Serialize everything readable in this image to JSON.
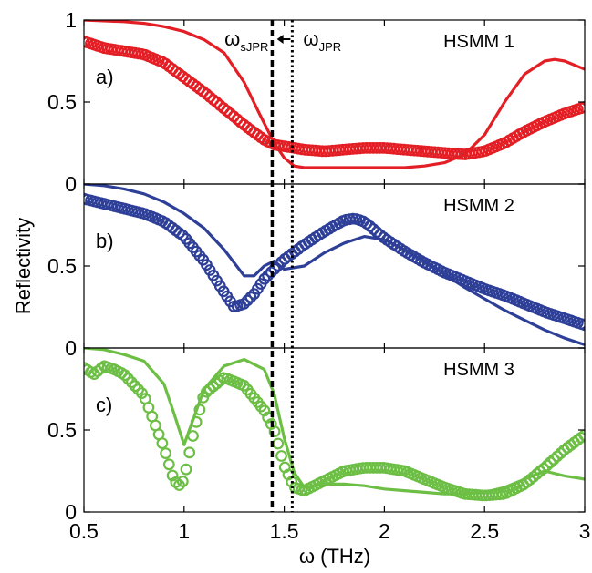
{
  "chart_data": {
    "type": "line",
    "xlabel": "ω (THz)",
    "ylabel": "Reflectivity",
    "xlim": [
      0.5,
      3
    ],
    "ylim": [
      0,
      1
    ],
    "x_ticks": [
      "0.5",
      "1",
      "1.5",
      "2",
      "2.5",
      "3"
    ],
    "y_ticks": [
      "0",
      "0.5",
      "1"
    ],
    "vlines": [
      {
        "name": "ωsJPR",
        "base": "ω",
        "sub": "sJPR",
        "x": 1.44,
        "style": "dashed",
        "color": "#000000"
      },
      {
        "name": "ωJPR",
        "base": "ω",
        "sub": "JPR",
        "x": 1.54,
        "style": "dotted",
        "color": "#000000"
      }
    ],
    "arrow": {
      "from": 1.54,
      "to": 1.45
    },
    "panels": [
      {
        "title": "HSMM 1",
        "letter": "a)",
        "color": "#e31e24",
        "series": [
          {
            "kind": "line",
            "x": [
              0.5,
              0.7,
              0.8,
              0.9,
              1.0,
              1.1,
              1.2,
              1.3,
              1.38,
              1.45,
              1.5,
              1.55,
              1.6,
              1.7,
              1.8,
              1.9,
              2.0,
              2.1,
              2.2,
              2.3,
              2.4,
              2.5,
              2.6,
              2.7,
              2.8,
              2.85,
              2.9,
              3.0
            ],
            "y": [
              1.0,
              0.99,
              0.98,
              0.96,
              0.93,
              0.88,
              0.8,
              0.62,
              0.42,
              0.25,
              0.16,
              0.11,
              0.1,
              0.1,
              0.1,
              0.1,
              0.1,
              0.1,
              0.11,
              0.13,
              0.18,
              0.3,
              0.5,
              0.67,
              0.75,
              0.76,
              0.75,
              0.7
            ]
          },
          {
            "kind": "markers",
            "x": [
              0.5,
              0.6,
              0.7,
              0.8,
              0.9,
              1.0,
              1.1,
              1.2,
              1.3,
              1.4,
              1.45,
              1.5,
              1.6,
              1.7,
              1.8,
              1.9,
              2.0,
              2.1,
              2.2,
              2.3,
              2.4,
              2.5,
              2.6,
              2.7,
              2.8,
              2.9,
              3.0
            ],
            "y": [
              0.87,
              0.83,
              0.81,
              0.79,
              0.74,
              0.65,
              0.56,
              0.46,
              0.36,
              0.27,
              0.24,
              0.23,
              0.21,
              0.2,
              0.21,
              0.22,
              0.22,
              0.21,
              0.2,
              0.19,
              0.18,
              0.2,
              0.25,
              0.32,
              0.38,
              0.43,
              0.47
            ]
          }
        ]
      },
      {
        "title": "HSMM 2",
        "letter": "b)",
        "color": "#2e3f98",
        "series": [
          {
            "kind": "line",
            "x": [
              0.5,
              0.6,
              0.7,
              0.8,
              0.9,
              1.0,
              1.1,
              1.2,
              1.3,
              1.35,
              1.4,
              1.45,
              1.5,
              1.6,
              1.7,
              1.8,
              1.9,
              2.0,
              2.1,
              2.2,
              2.3,
              2.4,
              2.5,
              2.6,
              2.7,
              2.8,
              2.9,
              3.0
            ],
            "y": [
              1.0,
              0.99,
              0.97,
              0.94,
              0.89,
              0.82,
              0.73,
              0.6,
              0.44,
              0.44,
              0.5,
              0.53,
              0.48,
              0.5,
              0.58,
              0.64,
              0.68,
              0.66,
              0.6,
              0.53,
              0.45,
              0.37,
              0.3,
              0.23,
              0.17,
              0.11,
              0.06,
              0.02
            ]
          },
          {
            "kind": "markers",
            "x": [
              0.5,
              0.6,
              0.7,
              0.8,
              0.9,
              1.0,
              1.1,
              1.2,
              1.25,
              1.3,
              1.35,
              1.4,
              1.5,
              1.6,
              1.7,
              1.8,
              1.85,
              1.9,
              2.0,
              2.1,
              2.2,
              2.3,
              2.4,
              2.5,
              2.6,
              2.7,
              2.8,
              2.9,
              3.0
            ],
            "y": [
              0.91,
              0.88,
              0.85,
              0.82,
              0.77,
              0.68,
              0.53,
              0.34,
              0.25,
              0.27,
              0.33,
              0.42,
              0.54,
              0.63,
              0.71,
              0.78,
              0.79,
              0.77,
              0.67,
              0.59,
              0.52,
              0.46,
              0.41,
              0.36,
              0.32,
              0.27,
              0.22,
              0.18,
              0.14
            ]
          }
        ]
      },
      {
        "title": "HSMM 3",
        "letter": "c)",
        "color": "#6cbe45",
        "series": [
          {
            "kind": "line",
            "x": [
              0.5,
              0.6,
              0.7,
              0.8,
              0.9,
              0.95,
              1.0,
              1.05,
              1.1,
              1.2,
              1.3,
              1.4,
              1.45,
              1.5,
              1.55,
              1.6,
              1.7,
              1.8,
              1.9,
              2.0,
              2.1,
              2.2,
              2.3,
              2.4,
              2.5,
              2.6,
              2.7,
              2.8,
              2.9,
              3.0
            ],
            "y": [
              1.0,
              0.99,
              0.96,
              0.92,
              0.78,
              0.6,
              0.41,
              0.58,
              0.75,
              0.89,
              0.93,
              0.87,
              0.72,
              0.45,
              0.24,
              0.15,
              0.17,
              0.17,
              0.16,
              0.14,
              0.13,
              0.12,
              0.11,
              0.11,
              0.12,
              0.15,
              0.2,
              0.25,
              0.22,
              0.2
            ]
          },
          {
            "kind": "markers",
            "x": [
              0.5,
              0.55,
              0.6,
              0.65,
              0.7,
              0.8,
              0.9,
              0.95,
              0.98,
              1.0,
              1.05,
              1.1,
              1.2,
              1.3,
              1.4,
              1.45,
              1.5,
              1.55,
              1.6,
              1.7,
              1.8,
              1.9,
              2.0,
              2.1,
              2.2,
              2.3,
              2.4,
              2.5,
              2.6,
              2.7,
              2.8,
              2.9,
              3.0
            ],
            "y": [
              0.88,
              0.84,
              0.89,
              0.87,
              0.84,
              0.71,
              0.39,
              0.19,
              0.16,
              0.2,
              0.5,
              0.72,
              0.82,
              0.77,
              0.62,
              0.5,
              0.28,
              0.15,
              0.13,
              0.19,
              0.25,
              0.27,
              0.27,
              0.25,
              0.2,
              0.15,
              0.11,
              0.1,
              0.11,
              0.17,
              0.27,
              0.38,
              0.47
            ]
          }
        ]
      }
    ]
  }
}
